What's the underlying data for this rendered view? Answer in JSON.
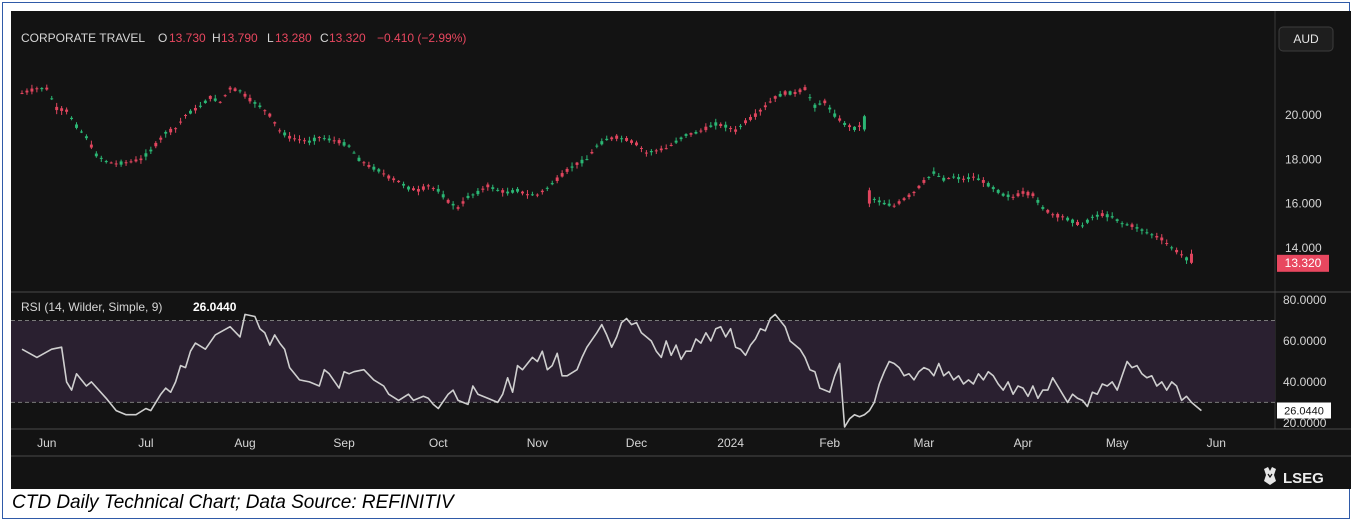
{
  "chart_data": {
    "type": "candlestick",
    "instrument": "CORPORATE TRAVEL",
    "ohlc_header": {
      "open_label": "O",
      "open": "13.730",
      "high_label": "H",
      "high": "13.790",
      "low_label": "L",
      "low": "13.280",
      "close_label": "C",
      "close": "13.320",
      "change": "−0.410 (−2.99%)"
    },
    "currency": "AUD",
    "last_price_tag": "13.320",
    "price_axis": {
      "ticks": [
        "20.000",
        "18.000",
        "16.000",
        "14.000"
      ],
      "tick_values": [
        20,
        18,
        16,
        14
      ],
      "range": [
        12.0,
        22.9
      ]
    },
    "rsi": {
      "label": "RSI (14, Wilder, Simple, 9)",
      "value": "26.0440",
      "axis_ticks": [
        "80.0000",
        "60.0000",
        "40.0000",
        "20.0000"
      ],
      "tick_values": [
        80,
        60,
        40,
        20
      ],
      "range": [
        17,
        82
      ],
      "overbought": 70,
      "oversold": 30,
      "points": [
        [
          0,
          56
        ],
        [
          3,
          52
        ],
        [
          6,
          56
        ],
        [
          8,
          57
        ],
        [
          9,
          40
        ],
        [
          10,
          36
        ],
        [
          11,
          44
        ],
        [
          13,
          38
        ],
        [
          14,
          40
        ],
        [
          17,
          32
        ],
        [
          19,
          26
        ],
        [
          21,
          24
        ],
        [
          23,
          24
        ],
        [
          25,
          27
        ],
        [
          26,
          26
        ],
        [
          27,
          30
        ],
        [
          28,
          34
        ],
        [
          29,
          37
        ],
        [
          30,
          35
        ],
        [
          31,
          40
        ],
        [
          32,
          48
        ],
        [
          33,
          47
        ],
        [
          34,
          55
        ],
        [
          35,
          59
        ],
        [
          37,
          56
        ],
        [
          39,
          63
        ],
        [
          42,
          67
        ],
        [
          44,
          62
        ],
        [
          45,
          73
        ],
        [
          47,
          72
        ],
        [
          48,
          66
        ],
        [
          49,
          64
        ],
        [
          50,
          58
        ],
        [
          51,
          63
        ],
        [
          52,
          59
        ],
        [
          53,
          56
        ],
        [
          54,
          47
        ],
        [
          55,
          44
        ],
        [
          56,
          41
        ],
        [
          58,
          40
        ],
        [
          60,
          38
        ],
        [
          61,
          46
        ],
        [
          62,
          44
        ],
        [
          64,
          37
        ],
        [
          65,
          45
        ],
        [
          66,
          44
        ],
        [
          67,
          45
        ],
        [
          69,
          46
        ],
        [
          71,
          41
        ],
        [
          73,
          38
        ],
        [
          74,
          34
        ],
        [
          76,
          31
        ],
        [
          78,
          34
        ],
        [
          79,
          31
        ],
        [
          81,
          33
        ],
        [
          82,
          32
        ],
        [
          83,
          29
        ],
        [
          84,
          27
        ],
        [
          86,
          34
        ],
        [
          87,
          36
        ],
        [
          88,
          31
        ],
        [
          90,
          29
        ],
        [
          91,
          38
        ],
        [
          92,
          34
        ],
        [
          94,
          32
        ],
        [
          96,
          30
        ],
        [
          97,
          34
        ],
        [
          98,
          42
        ],
        [
          99,
          35
        ],
        [
          100,
          48
        ],
        [
          101,
          46
        ],
        [
          103,
          52
        ],
        [
          104,
          50
        ],
        [
          105,
          55
        ],
        [
          106,
          46
        ],
        [
          107,
          48
        ],
        [
          108,
          54
        ],
        [
          109,
          43
        ],
        [
          110,
          43
        ],
        [
          112,
          46
        ],
        [
          113,
          52
        ],
        [
          114,
          57
        ],
        [
          116,
          64
        ],
        [
          117,
          68
        ],
        [
          118,
          63
        ],
        [
          119,
          57
        ],
        [
          120,
          62
        ],
        [
          121,
          69
        ],
        [
          122,
          71
        ],
        [
          123,
          68
        ],
        [
          124,
          69
        ],
        [
          125,
          64
        ],
        [
          126,
          62
        ],
        [
          127,
          60
        ],
        [
          128,
          55
        ],
        [
          129,
          52
        ],
        [
          130,
          60
        ],
        [
          131,
          53
        ],
        [
          132,
          58
        ],
        [
          133,
          51
        ],
        [
          134,
          55
        ],
        [
          135,
          55
        ],
        [
          136,
          61
        ],
        [
          137,
          59
        ],
        [
          138,
          64
        ],
        [
          139,
          60
        ],
        [
          140,
          66
        ],
        [
          141,
          67
        ],
        [
          142,
          62
        ],
        [
          143,
          66
        ],
        [
          144,
          57
        ],
        [
          145,
          56
        ],
        [
          146,
          53
        ],
        [
          147,
          58
        ],
        [
          148,
          61
        ],
        [
          149,
          66
        ],
        [
          150,
          65
        ],
        [
          151,
          71
        ],
        [
          152,
          73
        ],
        [
          153,
          70
        ],
        [
          154,
          67
        ],
        [
          155,
          60
        ],
        [
          156,
          58
        ],
        [
          157,
          56
        ],
        [
          158,
          52
        ],
        [
          159,
          46
        ],
        [
          160,
          45
        ],
        [
          161,
          37
        ],
        [
          162,
          36
        ],
        [
          163,
          35
        ],
        [
          164,
          43
        ],
        [
          165,
          49
        ],
        [
          166,
          18
        ],
        [
          167,
          22
        ],
        [
          168,
          24
        ],
        [
          169,
          23
        ],
        [
          170,
          24
        ],
        [
          171,
          26
        ],
        [
          172,
          30
        ],
        [
          173,
          39
        ],
        [
          174,
          45
        ],
        [
          175,
          50
        ],
        [
          176,
          49
        ],
        [
          177,
          47
        ],
        [
          178,
          43
        ],
        [
          179,
          44
        ],
        [
          180,
          41
        ],
        [
          181,
          45
        ],
        [
          182,
          47
        ],
        [
          183,
          46
        ],
        [
          184,
          43
        ],
        [
          185,
          49
        ],
        [
          186,
          43
        ],
        [
          187,
          45
        ],
        [
          188,
          41
        ],
        [
          189,
          43
        ],
        [
          190,
          39
        ],
        [
          191,
          41
        ],
        [
          192,
          39
        ],
        [
          193,
          44
        ],
        [
          194,
          41
        ],
        [
          195,
          45
        ],
        [
          196,
          43
        ],
        [
          197,
          39
        ],
        [
          198,
          36
        ],
        [
          199,
          40
        ],
        [
          200,
          34
        ],
        [
          201,
          38
        ],
        [
          202,
          37
        ],
        [
          203,
          33
        ],
        [
          204,
          38
        ],
        [
          205,
          32
        ],
        [
          206,
          36
        ],
        [
          207,
          36
        ],
        [
          208,
          42
        ],
        [
          209,
          38
        ],
        [
          210,
          34
        ],
        [
          211,
          30
        ],
        [
          212,
          34
        ],
        [
          213,
          32
        ],
        [
          214,
          31
        ],
        [
          215,
          28
        ],
        [
          216,
          35
        ],
        [
          217,
          34
        ],
        [
          218,
          39
        ],
        [
          219,
          38
        ],
        [
          220,
          40
        ],
        [
          221,
          36
        ],
        [
          222,
          43
        ],
        [
          223,
          50
        ],
        [
          224,
          47
        ],
        [
          225,
          48
        ],
        [
          226,
          44
        ],
        [
          227,
          42
        ],
        [
          228,
          43
        ],
        [
          229,
          38
        ],
        [
          230,
          40
        ],
        [
          231,
          36
        ],
        [
          232,
          40
        ],
        [
          233,
          38
        ],
        [
          234,
          31
        ],
        [
          235,
          33
        ],
        [
          236,
          30
        ],
        [
          237,
          28
        ],
        [
          238,
          26
        ]
      ]
    },
    "time_axis": [
      "Jun",
      "Jul",
      "Aug",
      "Sep",
      "Oct",
      "Nov",
      "Dec",
      "2024",
      "Feb",
      "Mar",
      "Apr",
      "May",
      "Jun"
    ],
    "time_axis_positions": [
      5,
      25,
      45,
      65,
      84,
      104,
      124,
      143,
      163,
      182,
      202,
      221,
      241
    ],
    "bar_count": 248,
    "price_keys": [
      [
        0,
        21.0
      ],
      [
        3,
        21.2
      ],
      [
        5,
        21.2
      ],
      [
        7,
        20.3
      ],
      [
        9,
        20.2
      ],
      [
        11,
        19.5
      ],
      [
        13,
        19.0
      ],
      [
        15,
        18.2
      ],
      [
        17,
        17.9
      ],
      [
        19,
        17.8
      ],
      [
        22,
        17.9
      ],
      [
        24,
        18.0
      ],
      [
        26,
        18.4
      ],
      [
        29,
        19.2
      ],
      [
        31,
        19.4
      ],
      [
        33,
        20.0
      ],
      [
        36,
        20.4
      ],
      [
        38,
        20.8
      ],
      [
        40,
        20.6
      ],
      [
        42,
        21.2
      ],
      [
        44,
        21.1
      ],
      [
        46,
        20.7
      ],
      [
        48,
        20.4
      ],
      [
        50,
        20.0
      ],
      [
        52,
        19.3
      ],
      [
        54,
        19.0
      ],
      [
        56,
        18.9
      ],
      [
        58,
        18.8
      ],
      [
        60,
        19.0
      ],
      [
        62,
        18.9
      ],
      [
        64,
        18.8
      ],
      [
        66,
        18.6
      ],
      [
        68,
        18.0
      ],
      [
        70,
        17.7
      ],
      [
        72,
        17.5
      ],
      [
        74,
        17.2
      ],
      [
        76,
        17.0
      ],
      [
        78,
        16.7
      ],
      [
        80,
        16.6
      ],
      [
        82,
        16.8
      ],
      [
        84,
        16.6
      ],
      [
        86,
        16.1
      ],
      [
        88,
        15.8
      ],
      [
        90,
        16.3
      ],
      [
        92,
        16.5
      ],
      [
        94,
        16.8
      ],
      [
        96,
        16.6
      ],
      [
        98,
        16.5
      ],
      [
        100,
        16.6
      ],
      [
        102,
        16.4
      ],
      [
        104,
        16.4
      ],
      [
        106,
        16.7
      ],
      [
        108,
        17.1
      ],
      [
        110,
        17.5
      ],
      [
        112,
        17.8
      ],
      [
        114,
        18.0
      ],
      [
        116,
        18.6
      ],
      [
        118,
        18.9
      ],
      [
        120,
        19.0
      ],
      [
        122,
        18.9
      ],
      [
        124,
        18.7
      ],
      [
        126,
        18.3
      ],
      [
        128,
        18.4
      ],
      [
        130,
        18.5
      ],
      [
        132,
        18.8
      ],
      [
        134,
        19.1
      ],
      [
        136,
        19.2
      ],
      [
        138,
        19.4
      ],
      [
        140,
        19.6
      ],
      [
        142,
        19.5
      ],
      [
        144,
        19.3
      ],
      [
        146,
        19.7
      ],
      [
        148,
        20.0
      ],
      [
        150,
        20.4
      ],
      [
        152,
        20.8
      ],
      [
        154,
        21.0
      ],
      [
        156,
        21.0
      ],
      [
        158,
        21.2
      ],
      [
        160,
        20.4
      ],
      [
        162,
        20.6
      ],
      [
        164,
        20.0
      ],
      [
        166,
        19.6
      ],
      [
        168,
        19.4
      ],
      [
        170,
        19.6
      ],
      [
        171,
        16.4
      ],
      [
        172,
        16.2
      ],
      [
        174,
        16.0
      ],
      [
        176,
        15.9
      ],
      [
        178,
        16.2
      ],
      [
        180,
        16.5
      ],
      [
        182,
        17.0
      ],
      [
        184,
        17.4
      ],
      [
        186,
        17.1
      ],
      [
        188,
        17.2
      ],
      [
        190,
        17.1
      ],
      [
        192,
        17.2
      ],
      [
        194,
        17.0
      ],
      [
        196,
        16.7
      ],
      [
        198,
        16.4
      ],
      [
        200,
        16.3
      ],
      [
        202,
        16.5
      ],
      [
        204,
        16.4
      ],
      [
        206,
        15.8
      ],
      [
        208,
        15.5
      ],
      [
        210,
        15.4
      ],
      [
        212,
        15.2
      ],
      [
        214,
        15.0
      ],
      [
        216,
        15.4
      ],
      [
        218,
        15.5
      ],
      [
        220,
        15.4
      ],
      [
        222,
        15.1
      ],
      [
        224,
        15.0
      ],
      [
        226,
        14.8
      ],
      [
        228,
        14.6
      ],
      [
        230,
        14.4
      ],
      [
        232,
        14.0
      ],
      [
        234,
        13.7
      ],
      [
        236,
        13.3
      ]
    ]
  },
  "caption": "CTD Daily Technical Chart; Data Source: REFINITIV",
  "branding": {
    "logo_text": "LSEG"
  },
  "colors": {
    "background": "#131313",
    "up_candle": "#2bb674",
    "down_candle": "#e0455e",
    "rsi_line": "#cfcfcf",
    "rsi_band": "#2a2030",
    "text": "#d6d6d6",
    "price_tag": "#e8475f"
  }
}
